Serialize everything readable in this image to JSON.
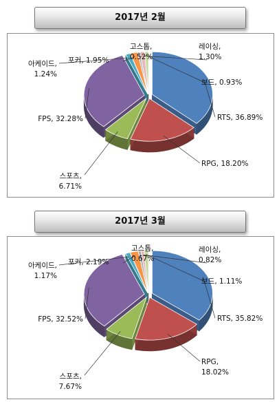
{
  "chart_data": [
    {
      "type": "pie",
      "title": "2017년 2월",
      "categories": [
        "RTS",
        "RPG",
        "스포츠",
        "FPS",
        "아케이드",
        "포커",
        "고스톱",
        "레이싱",
        "보드"
      ],
      "values": [
        36.89,
        18.2,
        6.71,
        32.28,
        1.24,
        1.95,
        0.52,
        1.3,
        0.93
      ],
      "data_labels": [
        "RTS, 36.89%",
        "RPG, 18.20%",
        "스포츠,|6.71%",
        "FPS, 32.28%",
        "아케이드,|1.24%",
        "포커, 1.95%",
        "고스톱,|0.52%",
        "레이싱,|1.30%",
        "보드, 0.93%"
      ],
      "legend": false,
      "style": "3d-exploded"
    },
    {
      "type": "pie",
      "title": "2017년 3월",
      "categories": [
        "RTS",
        "RPG",
        "스포츠",
        "FPS",
        "아케이드",
        "포커",
        "고스톱",
        "레이싱",
        "보드"
      ],
      "values": [
        35.82,
        18.02,
        7.67,
        32.52,
        1.17,
        2.19,
        0.67,
        0.82,
        1.11
      ],
      "data_labels": [
        "RTS, 35.82%",
        "RPG,|18.02%",
        "스포츠,|7.67%",
        "FPS, 32.52%",
        "아케이드,|1.17%",
        "포커, 2.19%",
        "고스톱,|0.67%",
        "레이싱,|0.82%",
        "보드, 1.11%"
      ],
      "legend": false,
      "style": "3d-exploded"
    }
  ],
  "colors": [
    "#4f81bd",
    "#c0504d",
    "#9bbb59",
    "#8064a2",
    "#4bacc6",
    "#f79646",
    "#a5a5a5",
    "#e6b9b8",
    "#c3d69b"
  ]
}
